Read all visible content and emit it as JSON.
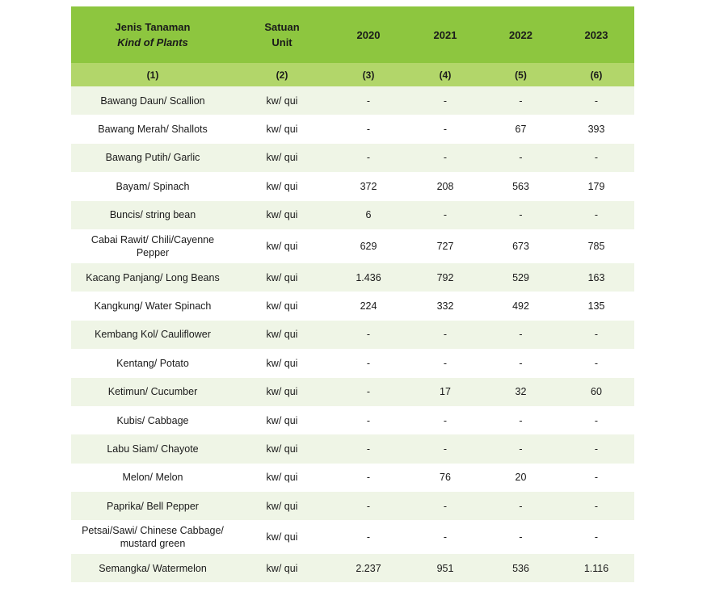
{
  "header": {
    "col_plant_id": "Jenis Tanaman",
    "col_plant_en": "Kind of Plants",
    "col_unit_id": "Satuan",
    "col_unit_en": "Unit",
    "years": [
      "2020",
      "2021",
      "2022",
      "2023"
    ],
    "numbers": [
      "(1)",
      "(2)",
      "(3)",
      "(4)",
      "(5)",
      "(6)"
    ]
  },
  "rows": [
    {
      "plant": "Bawang Daun/ Scallion",
      "unit": "kw/ qui",
      "v": [
        "-",
        "-",
        "-",
        "-"
      ]
    },
    {
      "plant": "Bawang Merah/ Shallots",
      "unit": "kw/ qui",
      "v": [
        "-",
        "-",
        "67",
        "393"
      ]
    },
    {
      "plant": "Bawang Putih/ Garlic",
      "unit": "kw/ qui",
      "v": [
        "-",
        "-",
        "-",
        "-"
      ]
    },
    {
      "plant": "Bayam/ Spinach",
      "unit": "kw/ qui",
      "v": [
        "372",
        "208",
        "563",
        "179"
      ]
    },
    {
      "plant": "Buncis/ string bean",
      "unit": "kw/ qui",
      "v": [
        "6",
        "-",
        "-",
        "-"
      ]
    },
    {
      "plant": "Cabai Rawit/ Chili/Cayenne Pepper",
      "unit": "kw/ qui",
      "v": [
        "629",
        "727",
        "673",
        "785"
      ]
    },
    {
      "plant": "Kacang Panjang/ Long Beans",
      "unit": "kw/ qui",
      "v": [
        "1.436",
        "792",
        "529",
        "163"
      ]
    },
    {
      "plant": "Kangkung/ Water Spinach",
      "unit": "kw/ qui",
      "v": [
        "224",
        "332",
        "492",
        "135"
      ]
    },
    {
      "plant": "Kembang Kol/ Cauliflower",
      "unit": "kw/ qui",
      "v": [
        "-",
        "-",
        "-",
        "-"
      ]
    },
    {
      "plant": "Kentang/ Potato",
      "unit": "kw/ qui",
      "v": [
        "-",
        "-",
        "-",
        "-"
      ]
    },
    {
      "plant": "Ketimun/ Cucumber",
      "unit": "kw/ qui",
      "v": [
        "-",
        "17",
        "32",
        "60"
      ]
    },
    {
      "plant": "Kubis/ Cabbage",
      "unit": "kw/ qui",
      "v": [
        "-",
        "-",
        "-",
        "-"
      ]
    },
    {
      "plant": "Labu Siam/ Chayote",
      "unit": "kw/ qui",
      "v": [
        "-",
        "-",
        "-",
        "-"
      ]
    },
    {
      "plant": "Melon/ Melon",
      "unit": "kw/ qui",
      "v": [
        "-",
        "76",
        "20",
        "-"
      ]
    },
    {
      "plant": "Paprika/ Bell Pepper",
      "unit": "kw/ qui",
      "v": [
        "-",
        "-",
        "-",
        "-"
      ]
    },
    {
      "plant_line1": "Petsai/Sawi/ Chinese Cabbage/",
      "plant_line2": "mustard green",
      "unit": "kw/ qui",
      "v": [
        "-",
        "-",
        "-",
        "-"
      ]
    },
    {
      "plant": "Semangka/ Watermelon",
      "unit": "kw/ qui",
      "v": [
        "2.237",
        "951",
        "536",
        "1.116"
      ]
    }
  ]
}
